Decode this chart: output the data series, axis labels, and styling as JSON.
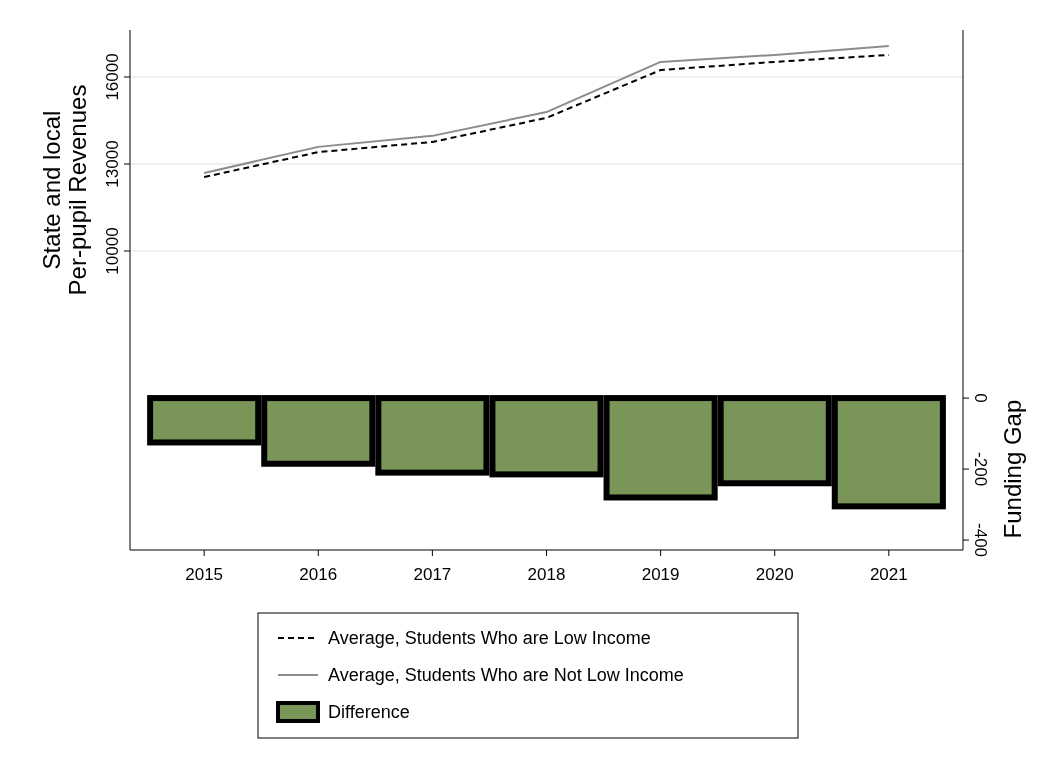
{
  "chart_data": {
    "type": "line",
    "ylabel": "State and local\nPer-pupil Revenues",
    "y2label": "Funding Gap",
    "x": [
      2015,
      2016,
      2017,
      2018,
      2019,
      2020,
      2021
    ],
    "xlim": [
      2014.35,
      2021.65
    ],
    "xticks": [
      2015,
      2016,
      2017,
      2018,
      2019,
      2020,
      2021
    ],
    "ylim": [
      -310,
      17620
    ],
    "yticks": [
      10000,
      13000,
      16000
    ],
    "y2lim": [
      -428,
      1037
    ],
    "y2ticks": [
      -400,
      -200,
      0
    ],
    "grid": "y",
    "legend": "bottom",
    "series": [
      {
        "name": "Average, Students Who are Low Income",
        "color": "#000000",
        "line_style": "dashed",
        "values": [
          12550,
          13410,
          13760,
          14590,
          16240,
          16520,
          16760
        ]
      },
      {
        "name": "Average, Students Who are Not Low Income",
        "color": "#8c8c8c",
        "line_style": "solid",
        "values": [
          12690,
          13590,
          13970,
          14790,
          16520,
          16760,
          17070
        ]
      },
      {
        "name": "Difference",
        "type": "bar",
        "axis": "y2",
        "color": "#7a9558",
        "values": [
          -125,
          -185,
          -210,
          -215,
          -280,
          -240,
          -305
        ]
      }
    ]
  }
}
